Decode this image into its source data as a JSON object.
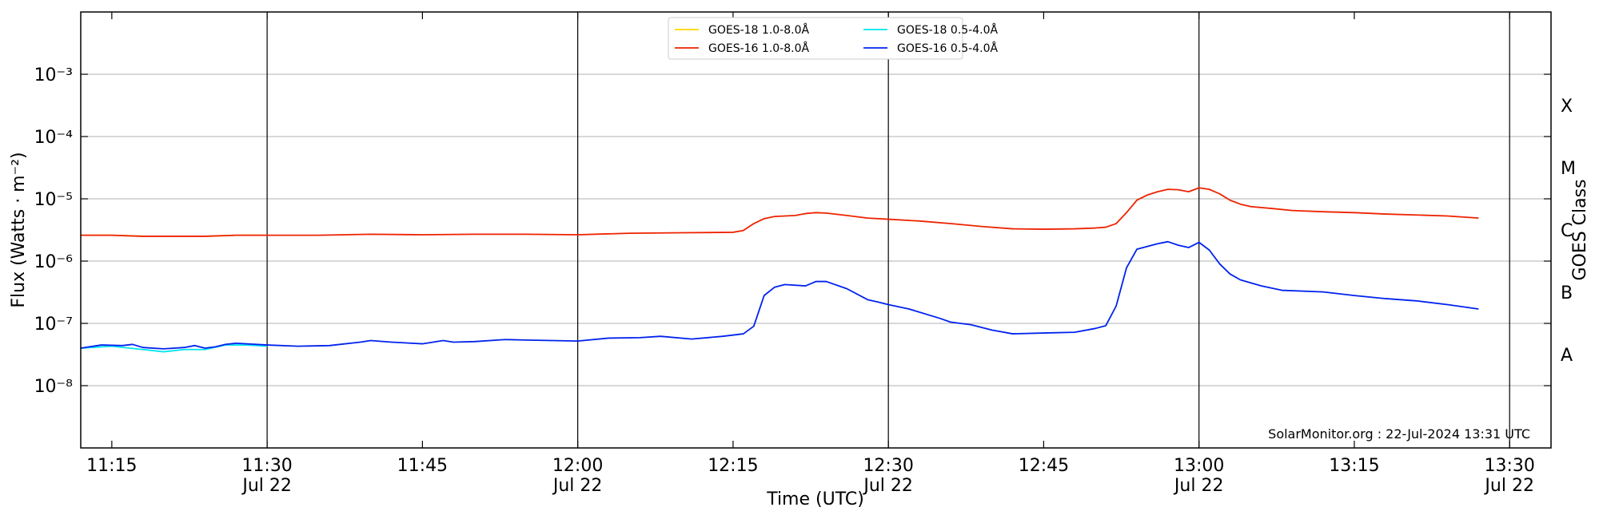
{
  "chart_data": {
    "type": "line",
    "y_log": true,
    "grid": true,
    "xlabel": "Time (UTC)",
    "ylabel": "Flux (Watts · m⁻²)",
    "y2label": "GOES Class",
    "annotation": "SolarMonitor.org : 22-Jul-2024 13:31 UTC",
    "legend": "top",
    "xlim": [
      "11:12",
      "13:34"
    ],
    "xticks": [
      "11:15",
      {
        "value": "11:30",
        "label": [
          "11:30",
          "Jul 22"
        ]
      },
      "11:45",
      {
        "value": "12:00",
        "label": [
          "12:00",
          "Jul 22"
        ]
      },
      "12:15",
      {
        "value": "12:30",
        "label": [
          "12:30",
          "Jul 22"
        ]
      },
      "12:45",
      {
        "value": "13:00",
        "label": [
          "13:00",
          "Jul 22"
        ]
      },
      "13:15",
      {
        "value": "13:30",
        "label": [
          "13:30",
          "Jul 22"
        ]
      }
    ],
    "vlines": [
      "11:30",
      "12:00",
      "12:30",
      "13:00",
      "13:30"
    ],
    "ylim": [
      1e-09,
      0.01
    ],
    "yticks": [
      {
        "value": 1e-08,
        "label": "10⁻⁸"
      },
      {
        "value": 1e-07,
        "label": "10⁻⁷"
      },
      {
        "value": 1e-06,
        "label": "10⁻⁶"
      },
      {
        "value": 1e-05,
        "label": "10⁻⁵"
      },
      {
        "value": 0.0001,
        "label": "10⁻⁴"
      },
      {
        "value": 0.001,
        "label": "10⁻³"
      }
    ],
    "y2ticks": [
      {
        "value": 3.16e-08,
        "label": "A"
      },
      {
        "value": 3.16e-07,
        "label": "B"
      },
      {
        "value": 3.16e-06,
        "label": "C"
      },
      {
        "value": 3.16e-05,
        "label": "M"
      },
      {
        "value": 0.000316,
        "label": "X"
      }
    ],
    "series": [
      {
        "name": "GOES-18 1.0-8.0Å",
        "color": "#ffd700",
        "x": [
          "11:12",
          "11:15",
          "11:18",
          "11:21",
          "11:24",
          "11:27",
          "11:30"
        ],
        "values": [
          2.6e-06,
          2.6e-06,
          2.5e-06,
          2.5e-06,
          2.5e-06,
          2.6e-06,
          2.6e-06
        ]
      },
      {
        "name": "GOES-16 1.0-8.0Å",
        "color": "#ee2200",
        "x": [
          "11:12",
          "11:15",
          "11:18",
          "11:21",
          "11:24",
          "11:27",
          "11:30",
          "11:35",
          "11:40",
          "11:45",
          "11:50",
          "11:55",
          "12:00",
          "12:05",
          "12:10",
          "12:15",
          "12:16",
          "12:17",
          "12:18",
          "12:19",
          "12:20",
          "12:21",
          "12:22",
          "12:23",
          "12:24",
          "12:26",
          "12:28",
          "12:30",
          "12:33",
          "12:36",
          "12:39",
          "12:42",
          "12:45",
          "12:48",
          "12:50",
          "12:51",
          "12:52",
          "12:53",
          "12:54",
          "12:55",
          "12:56",
          "12:57",
          "12:58",
          "12:59",
          "13:00",
          "13:01",
          "13:02",
          "13:03",
          "13:04",
          "13:05",
          "13:07",
          "13:09",
          "13:12",
          "13:15",
          "13:18",
          "13:21",
          "13:24",
          "13:27"
        ],
        "values": [
          2.6e-06,
          2.6e-06,
          2.5e-06,
          2.5e-06,
          2.5e-06,
          2.6e-06,
          2.6e-06,
          2.6e-06,
          2.7e-06,
          2.65e-06,
          2.7e-06,
          2.7e-06,
          2.65e-06,
          2.8e-06,
          2.85e-06,
          2.9e-06,
          3.1e-06,
          4e-06,
          4.8e-06,
          5.2e-06,
          5.3e-06,
          5.4e-06,
          5.8e-06,
          6e-06,
          5.9e-06,
          5.4e-06,
          4.9e-06,
          4.7e-06,
          4.4e-06,
          4e-06,
          3.6e-06,
          3.3e-06,
          3.25e-06,
          3.3e-06,
          3.4e-06,
          3.5e-06,
          4e-06,
          6e-06,
          9.5e-06,
          1.15e-05,
          1.3e-05,
          1.42e-05,
          1.4e-05,
          1.3e-05,
          1.5e-05,
          1.42e-05,
          1.2e-05,
          9.5e-06,
          8.2e-06,
          7.5e-06,
          7e-06,
          6.5e-06,
          6.2e-06,
          6e-06,
          5.7e-06,
          5.5e-06,
          5.3e-06,
          4.9e-06
        ]
      },
      {
        "name": "GOES-18 0.5-4.0Å",
        "color": "#00e5ee",
        "x": [
          "11:12",
          "11:15",
          "11:18",
          "11:20",
          "11:22",
          "11:24",
          "11:26",
          "11:28",
          "11:30"
        ],
        "values": [
          4e-08,
          4.3e-08,
          3.8e-08,
          3.5e-08,
          3.8e-08,
          3.8e-08,
          4.5e-08,
          4.5e-08,
          4.3e-08
        ]
      },
      {
        "name": "GOES-16 0.5-4.0Å",
        "color": "#0022ee",
        "x": [
          "11:12",
          "11:14",
          "11:16",
          "11:17",
          "11:18",
          "11:20",
          "11:22",
          "11:23",
          "11:24",
          "11:25",
          "11:26",
          "11:27",
          "11:30",
          "11:33",
          "11:36",
          "11:39",
          "11:40",
          "11:42",
          "11:45",
          "11:47",
          "11:48",
          "11:50",
          "11:53",
          "11:55",
          "12:00",
          "12:03",
          "12:06",
          "12:08",
          "12:11",
          "12:14",
          "12:16",
          "12:17",
          "12:18",
          "12:19",
          "12:20",
          "12:22",
          "12:23",
          "12:24",
          "12:26",
          "12:28",
          "12:29",
          "12:30",
          "12:32",
          "12:35",
          "12:36",
          "12:38",
          "12:40",
          "12:42",
          "12:45",
          "12:48",
          "12:50",
          "12:51",
          "12:52",
          "12:53",
          "12:54",
          "12:56",
          "12:57",
          "12:58",
          "12:59",
          "13:00",
          "13:01",
          "13:02",
          "13:03",
          "13:04",
          "13:06",
          "13:08",
          "13:12",
          "13:15",
          "13:18",
          "13:21",
          "13:24",
          "13:27"
        ],
        "values": [
          4e-08,
          4.5e-08,
          4.4e-08,
          4.6e-08,
          4.1e-08,
          3.9e-08,
          4.1e-08,
          4.4e-08,
          4e-08,
          4.2e-08,
          4.6e-08,
          4.8e-08,
          4.5e-08,
          4.3e-08,
          4.4e-08,
          5e-08,
          5.3e-08,
          5e-08,
          4.7e-08,
          5.3e-08,
          5e-08,
          5.1e-08,
          5.5e-08,
          5.4e-08,
          5.2e-08,
          5.8e-08,
          5.9e-08,
          6.2e-08,
          5.6e-08,
          6.2e-08,
          6.8e-08,
          9e-08,
          2.8e-07,
          3.8e-07,
          4.2e-07,
          4e-07,
          4.7e-07,
          4.7e-07,
          3.6e-07,
          2.4e-07,
          2.2e-07,
          2e-07,
          1.7e-07,
          1.2e-07,
          1.05e-07,
          9.5e-08,
          7.8e-08,
          6.8e-08,
          7e-08,
          7.2e-08,
          8.3e-08,
          9.2e-08,
          1.9e-07,
          7.8e-07,
          1.55e-06,
          1.9e-06,
          2.05e-06,
          1.8e-06,
          1.65e-06,
          2e-06,
          1.5e-06,
          9e-07,
          6.2e-07,
          5e-07,
          4e-07,
          3.4e-07,
          3.2e-07,
          2.8e-07,
          2.5e-07,
          2.3e-07,
          2e-07,
          1.7e-07
        ]
      }
    ]
  }
}
